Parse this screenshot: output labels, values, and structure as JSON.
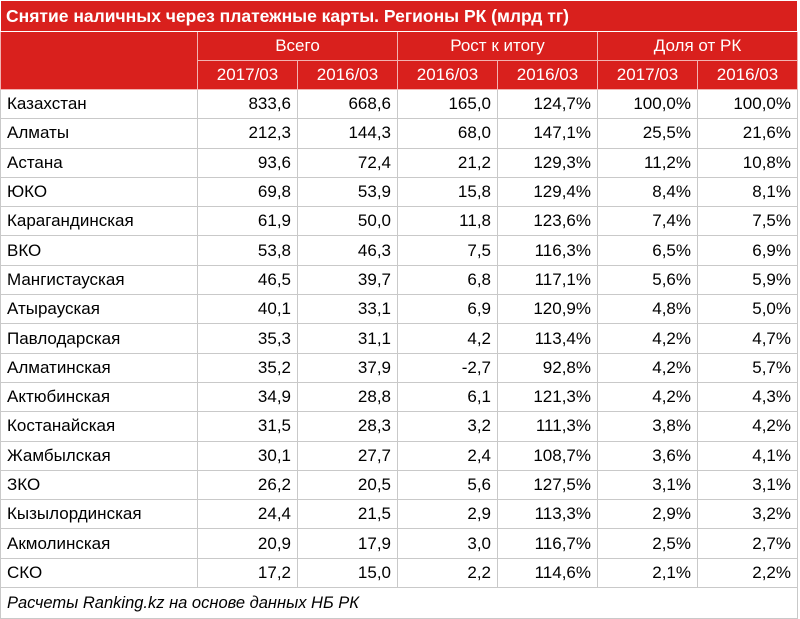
{
  "title": "Снятие наличных через платежные карты. Регионы РК (млрд тг)",
  "groups": [
    "Всего",
    "Рост к итогу",
    "Доля от РК"
  ],
  "years": [
    "2017/03",
    "2016/03",
    "2016/03",
    "2016/03",
    "2017/03",
    "2016/03"
  ],
  "rows": [
    {
      "region": "Казахстан",
      "v": [
        "833,6",
        "668,6",
        "165,0",
        "124,7%",
        "100,0%",
        "100,0%"
      ]
    },
    {
      "region": "Алматы",
      "v": [
        "212,3",
        "144,3",
        "68,0",
        "147,1%",
        "25,5%",
        "21,6%"
      ]
    },
    {
      "region": "Астана",
      "v": [
        "93,6",
        "72,4",
        "21,2",
        "129,3%",
        "11,2%",
        "10,8%"
      ]
    },
    {
      "region": "ЮКО",
      "v": [
        "69,8",
        "53,9",
        "15,8",
        "129,4%",
        "8,4%",
        "8,1%"
      ]
    },
    {
      "region": "Карагандинская",
      "v": [
        "61,9",
        "50,0",
        "11,8",
        "123,6%",
        "7,4%",
        "7,5%"
      ]
    },
    {
      "region": "ВКО",
      "v": [
        "53,8",
        "46,3",
        "7,5",
        "116,3%",
        "6,5%",
        "6,9%"
      ]
    },
    {
      "region": "Мангистауская",
      "v": [
        "46,5",
        "39,7",
        "6,8",
        "117,1%",
        "5,6%",
        "5,9%"
      ]
    },
    {
      "region": "Атырауская",
      "v": [
        "40,1",
        "33,1",
        "6,9",
        "120,9%",
        "4,8%",
        "5,0%"
      ]
    },
    {
      "region": "Павлодарская",
      "v": [
        "35,3",
        "31,1",
        "4,2",
        "113,4%",
        "4,2%",
        "4,7%"
      ]
    },
    {
      "region": "Алматинская",
      "v": [
        "35,2",
        "37,9",
        "-2,7",
        "92,8%",
        "4,2%",
        "5,7%"
      ]
    },
    {
      "region": "Актюбинская",
      "v": [
        "34,9",
        "28,8",
        "6,1",
        "121,3%",
        "4,2%",
        "4,3%"
      ]
    },
    {
      "region": "Костанайская",
      "v": [
        "31,5",
        "28,3",
        "3,2",
        "111,3%",
        "3,8%",
        "4,2%"
      ]
    },
    {
      "region": "Жамбылская",
      "v": [
        "30,1",
        "27,7",
        "2,4",
        "108,7%",
        "3,6%",
        "4,1%"
      ]
    },
    {
      "region": "ЗКО",
      "v": [
        "26,2",
        "20,5",
        "5,6",
        "127,5%",
        "3,1%",
        "3,1%"
      ]
    },
    {
      "region": "Кызылординская",
      "v": [
        "24,4",
        "21,5",
        "2,9",
        "113,3%",
        "2,9%",
        "3,2%"
      ]
    },
    {
      "region": "Акмолинская",
      "v": [
        "20,9",
        "17,9",
        "3,0",
        "116,7%",
        "2,5%",
        "2,7%"
      ]
    },
    {
      "region": "СКО",
      "v": [
        "17,2",
        "15,0",
        "2,2",
        "114,6%",
        "2,1%",
        "2,2%"
      ]
    }
  ],
  "footer": "Расчеты Ranking.kz на основе данных НБ РК",
  "colors": {
    "header_bg": "#d9201d",
    "header_text": "#ffffff",
    "grid": "#c9c9c9"
  }
}
